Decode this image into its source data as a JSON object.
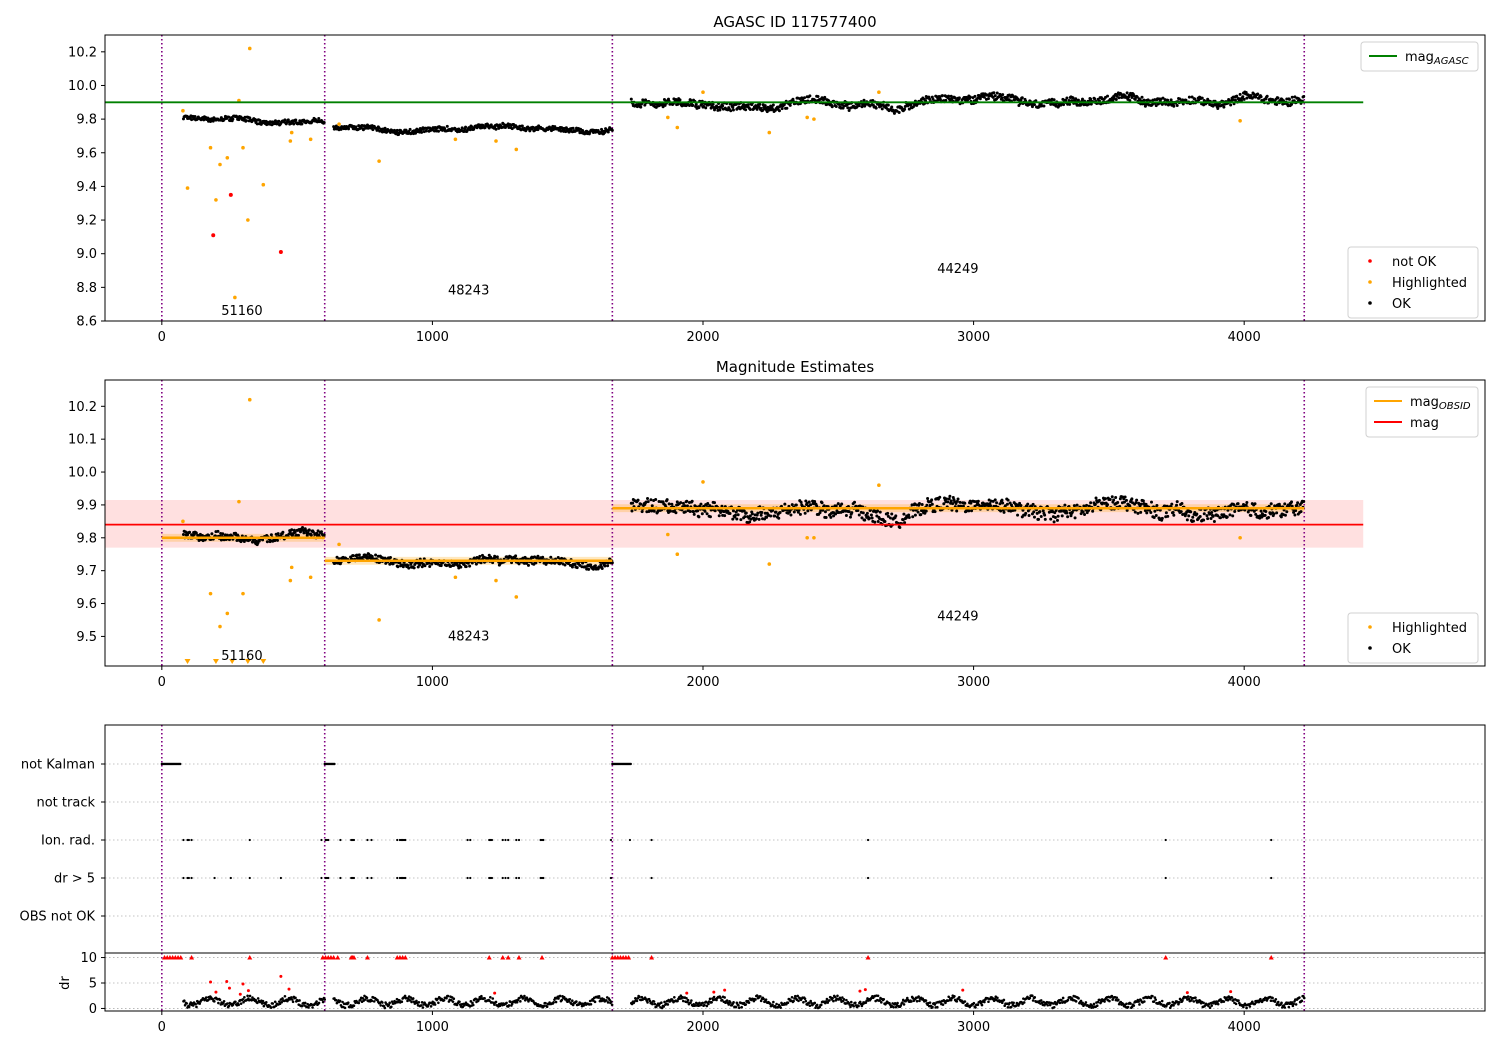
{
  "chart_data": [
    {
      "type": "scatter",
      "title": "AGASC ID 117577400",
      "xlim": [
        -210,
        4890
      ],
      "ylim": [
        8.6,
        10.3
      ],
      "xticks": [
        0,
        1000,
        2000,
        3000,
        4000
      ],
      "yticks": [
        8.6,
        8.8,
        9.0,
        9.2,
        9.4,
        9.6,
        9.8,
        10.0,
        10.2
      ],
      "obs_boundaries": [
        0,
        602,
        1665,
        4222
      ],
      "obs_labels": [
        {
          "text": "51160",
          "x": 296,
          "y": 8.66
        },
        {
          "text": "48243",
          "x": 1134,
          "y": 8.78
        },
        {
          "text": "44249",
          "x": 2942,
          "y": 8.91
        }
      ],
      "hlines": [
        {
          "name": "mag_AGASC",
          "y": 9.9,
          "x": [
            -210,
            4440
          ],
          "color": "#008000"
        }
      ],
      "legend_top": {
        "placement": "upper-right",
        "entries": [
          {
            "label": "mag",
            "sub": "AGASC",
            "color": "#008000",
            "kind": "line"
          }
        ]
      },
      "legend_bottom": {
        "placement": "lower-right",
        "entries": [
          {
            "label": "not OK",
            "color": "#ff0000",
            "kind": "dot"
          },
          {
            "label": "Highlighted",
            "color": "#ffa500",
            "kind": "dot"
          },
          {
            "label": "OK",
            "color": "#000000",
            "kind": "dot"
          }
        ]
      },
      "segments": [
        {
          "x0": 80,
          "x1": 602,
          "mean": 9.8,
          "amp": 0.03
        },
        {
          "x0": 635,
          "x1": 1665,
          "mean": 9.74,
          "amp": 0.03
        },
        {
          "x0": 1735,
          "x1": 4222,
          "mean": 9.9,
          "amp": 0.05
        }
      ],
      "highlighted": [
        [
          78,
          9.85
        ],
        [
          95,
          9.39
        ],
        [
          180,
          9.63
        ],
        [
          200,
          9.32
        ],
        [
          215,
          9.53
        ],
        [
          242,
          9.57
        ],
        [
          270,
          8.74
        ],
        [
          285,
          9.91
        ],
        [
          300,
          9.63
        ],
        [
          318,
          9.2
        ],
        [
          325,
          10.22
        ],
        [
          375,
          9.41
        ],
        [
          475,
          9.67
        ],
        [
          480,
          9.72
        ],
        [
          550,
          9.68
        ],
        [
          655,
          9.77
        ],
        [
          803,
          9.55
        ],
        [
          1085,
          9.68
        ],
        [
          1235,
          9.67
        ],
        [
          1310,
          9.62
        ],
        [
          1870,
          9.81
        ],
        [
          1905,
          9.75
        ],
        [
          2000,
          9.96
        ],
        [
          2245,
          9.72
        ],
        [
          2385,
          9.81
        ],
        [
          2410,
          9.8
        ],
        [
          2650,
          9.96
        ],
        [
          3985,
          9.79
        ]
      ],
      "not_ok": [
        [
          190,
          9.11
        ],
        [
          255,
          9.35
        ],
        [
          440,
          9.01
        ]
      ]
    },
    {
      "type": "scatter",
      "title": "Magnitude Estimates",
      "xlim": [
        -210,
        4890
      ],
      "ylim": [
        9.41,
        10.28
      ],
      "xticks": [
        0,
        1000,
        2000,
        3000,
        4000
      ],
      "yticks": [
        9.5,
        9.6,
        9.7,
        9.8,
        9.9,
        10.0,
        10.1,
        10.2
      ],
      "obs_boundaries": [
        0,
        602,
        1665,
        4222
      ],
      "obs_labels": [
        {
          "text": "51160",
          "x": 296,
          "y": 9.44
        },
        {
          "text": "48243",
          "x": 1134,
          "y": 9.5
        },
        {
          "text": "44249",
          "x": 2942,
          "y": 9.56
        }
      ],
      "mag": {
        "y": 9.84,
        "band": [
          9.77,
          9.915
        ],
        "x": [
          -210,
          4440
        ],
        "color": "#ff0000"
      },
      "mag_obsid": [
        {
          "x0": 0,
          "x1": 602,
          "y": 9.8
        },
        {
          "x0": 602,
          "x1": 1665,
          "y": 9.73
        },
        {
          "x0": 1665,
          "x1": 4222,
          "y": 9.89
        }
      ],
      "legend_top": {
        "placement": "upper-right",
        "entries": [
          {
            "label": "mag",
            "sub": "OBSID",
            "color": "#ffa500",
            "kind": "line"
          },
          {
            "label": "mag",
            "sub": "",
            "color": "#ff0000",
            "kind": "line"
          }
        ]
      },
      "legend_bottom": {
        "placement": "lower-right",
        "entries": [
          {
            "label": "Highlighted",
            "color": "#ffa500",
            "kind": "dot"
          },
          {
            "label": "OK",
            "color": "#000000",
            "kind": "dot"
          }
        ]
      },
      "segments": [
        {
          "x0": 80,
          "x1": 602,
          "mean": 9.8,
          "amp": 0.025
        },
        {
          "x0": 635,
          "x1": 1665,
          "mean": 9.73,
          "amp": 0.025
        },
        {
          "x0": 1735,
          "x1": 4222,
          "mean": 9.89,
          "amp": 0.045
        }
      ],
      "highlighted": [
        [
          78,
          9.85
        ],
        [
          180,
          9.63
        ],
        [
          215,
          9.53
        ],
        [
          242,
          9.57
        ],
        [
          285,
          9.91
        ],
        [
          300,
          9.63
        ],
        [
          325,
          10.22
        ],
        [
          475,
          9.67
        ],
        [
          480,
          9.71
        ],
        [
          550,
          9.68
        ],
        [
          655,
          9.78
        ],
        [
          803,
          9.55
        ],
        [
          1085,
          9.68
        ],
        [
          1235,
          9.67
        ],
        [
          1310,
          9.62
        ],
        [
          1870,
          9.81
        ],
        [
          1905,
          9.75
        ],
        [
          2000,
          9.97
        ],
        [
          2245,
          9.72
        ],
        [
          2385,
          9.8
        ],
        [
          2410,
          9.8
        ],
        [
          2650,
          9.96
        ],
        [
          3985,
          9.8
        ]
      ],
      "below_range": [
        95,
        200,
        260,
        318,
        375
      ]
    },
    {
      "type": "scatter",
      "title": "",
      "xlim": [
        -210,
        4890
      ],
      "xticks": [
        0,
        1000,
        2000,
        3000,
        4000
      ],
      "obs_boundaries": [
        0,
        602,
        1665,
        4222
      ],
      "flag_rows": [
        "not Kalman",
        "not track",
        "Ion. rad.",
        "dr > 5",
        "OBS not OK"
      ],
      "flag_events": {
        "not Kalman": [
          [
            0,
            70
          ],
          [
            602,
            640
          ],
          [
            1665,
            1735
          ]
        ],
        "not track": [],
        "Ion. rad.": [
          80,
          95,
          100,
          110,
          325,
          590,
          605,
          610,
          615,
          660,
          700,
          705,
          710,
          760,
          775,
          870,
          880,
          885,
          890,
          895,
          900,
          1130,
          1140,
          1210,
          1215,
          1220,
          1260,
          1270,
          1280,
          1310,
          1320,
          1400,
          1405,
          1410,
          1660,
          1730,
          1810,
          2610,
          3710,
          4100
        ],
        "dr > 5": [
          80,
          95,
          100,
          110,
          195,
          255,
          325,
          440,
          590,
          605,
          610,
          615,
          660,
          700,
          705,
          710,
          760,
          775,
          870,
          880,
          885,
          890,
          895,
          900,
          1130,
          1140,
          1210,
          1215,
          1220,
          1260,
          1270,
          1280,
          1310,
          1320,
          1400,
          1405,
          1410,
          1660,
          1810,
          2610,
          3710,
          4100
        ],
        "OBS not OK": []
      },
      "dr_panel": {
        "ylabel": "dr",
        "yticks": [
          0,
          5,
          10
        ],
        "ylim": [
          -0.5,
          10.5
        ],
        "clip_value": 10,
        "clipped": [
          10,
          20,
          30,
          40,
          50,
          60,
          70,
          110,
          325,
          595,
          605,
          615,
          625,
          635,
          650,
          700,
          705,
          710,
          760,
          870,
          880,
          890,
          900,
          1210,
          1260,
          1280,
          1320,
          1405,
          1665,
          1675,
          1685,
          1695,
          1705,
          1715,
          1725,
          1810,
          2610,
          3710,
          4100
        ],
        "high": [
          [
            180,
            5.2
          ],
          [
            200,
            3.2
          ],
          [
            240,
            5.3
          ],
          [
            250,
            4.0
          ],
          [
            290,
            2.8
          ],
          [
            300,
            4.8
          ],
          [
            320,
            3.5
          ],
          [
            440,
            6.3
          ],
          [
            470,
            3.8
          ],
          [
            1230,
            3.0
          ],
          [
            1940,
            3.0
          ],
          [
            2040,
            3.2
          ],
          [
            2080,
            3.6
          ],
          [
            2580,
            3.4
          ],
          [
            2600,
            3.7
          ],
          [
            2960,
            3.6
          ],
          [
            3790,
            3.1
          ],
          [
            3950,
            3.3
          ]
        ]
      }
    }
  ]
}
